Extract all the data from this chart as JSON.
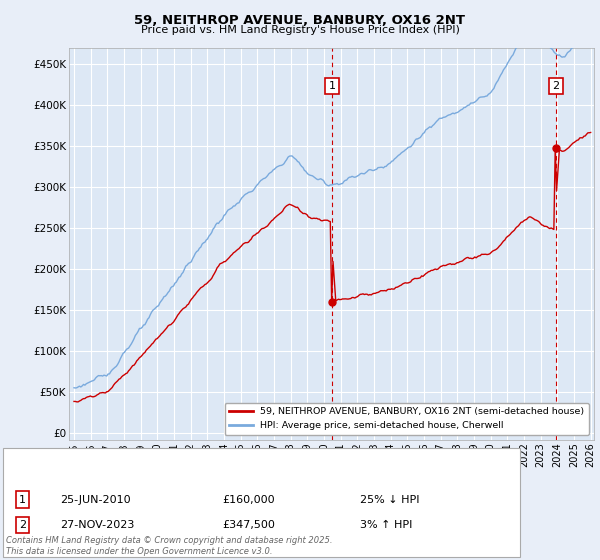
{
  "title": "59, NEITHROP AVENUE, BANBURY, OX16 2NT",
  "subtitle": "Price paid vs. HM Land Registry's House Price Index (HPI)",
  "background_color": "#e8eef8",
  "plot_bg_color": "#dde8f5",
  "grid_color": "#ffffff",
  "hpi_color": "#7aaadd",
  "price_color": "#cc0000",
  "dashed_line_color": "#cc0000",
  "ylabel_ticks": [
    "£0",
    "£50K",
    "£100K",
    "£150K",
    "£200K",
    "£250K",
    "£300K",
    "£350K",
    "£400K",
    "£450K"
  ],
  "ytick_values": [
    0,
    50000,
    100000,
    150000,
    200000,
    250000,
    300000,
    350000,
    400000,
    450000
  ],
  "xmin": 1994.7,
  "xmax": 2026.2,
  "ymin": -8000,
  "ymax": 470000,
  "transaction1_date": 2010.48,
  "transaction1_price": 160000,
  "transaction1_label": "1",
  "transaction2_date": 2023.91,
  "transaction2_price": 347500,
  "transaction2_label": "2",
  "legend_entries": [
    "59, NEITHROP AVENUE, BANBURY, OX16 2NT (semi-detached house)",
    "HPI: Average price, semi-detached house, Cherwell"
  ],
  "annotation1_date": "25-JUN-2010",
  "annotation1_price": "£160,000",
  "annotation1_hpi": "25% ↓ HPI",
  "annotation2_date": "27-NOV-2023",
  "annotation2_price": "£347,500",
  "annotation2_hpi": "3% ↑ HPI",
  "footer": "Contains HM Land Registry data © Crown copyright and database right 2025.\nThis data is licensed under the Open Government Licence v3.0."
}
